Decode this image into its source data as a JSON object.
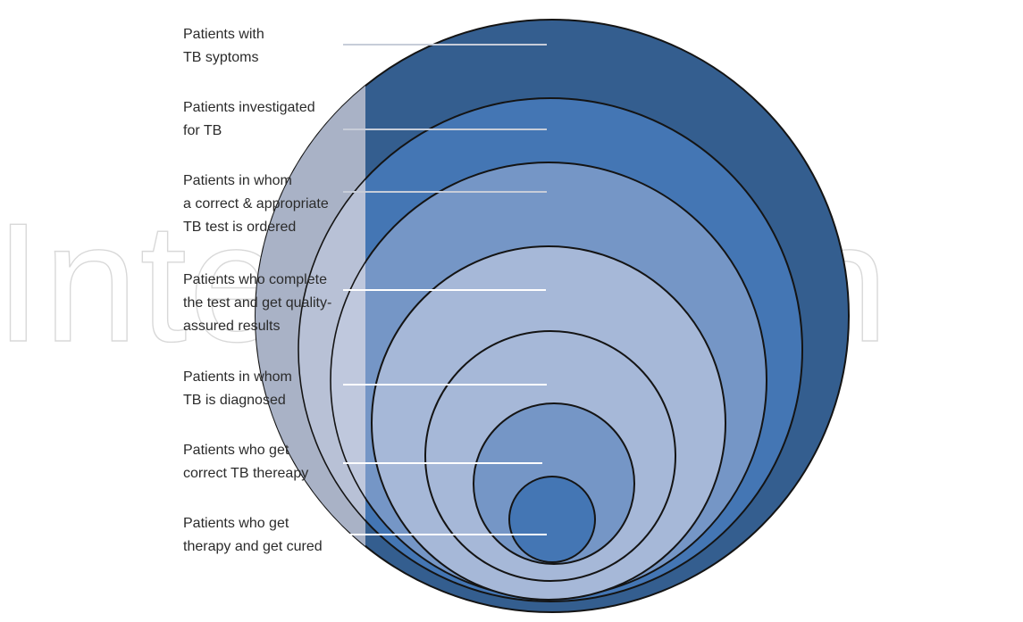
{
  "watermark": {
    "text": "IntechOpen"
  },
  "colors": {
    "ring_fills": [
      "#345e8f",
      "#4476b4",
      "#7596c6",
      "#a6b8d8",
      "#a6b8d8",
      "#7596c6",
      "#4476b4"
    ],
    "left_band": "#a9b2c6",
    "connector": "#c7cdd9",
    "outline": "#141414"
  },
  "levels": [
    {
      "lines": [
        "Patients with",
        "TB syptoms"
      ]
    },
    {
      "lines": [
        "Patients investigated",
        "for TB"
      ]
    },
    {
      "lines": [
        "Patients in whom",
        "a correct & appropriate",
        "TB test is ordered"
      ]
    },
    {
      "lines": [
        "Patients who complete",
        "the test and get quality-",
        "assured results"
      ]
    },
    {
      "lines": [
        "Patients in whom",
        "TB is diagnosed"
      ]
    },
    {
      "lines": [
        "Patients who get",
        "correct TB thereapy"
      ]
    },
    {
      "lines": [
        "Patients who get",
        "therapy and get cured"
      ]
    }
  ]
}
